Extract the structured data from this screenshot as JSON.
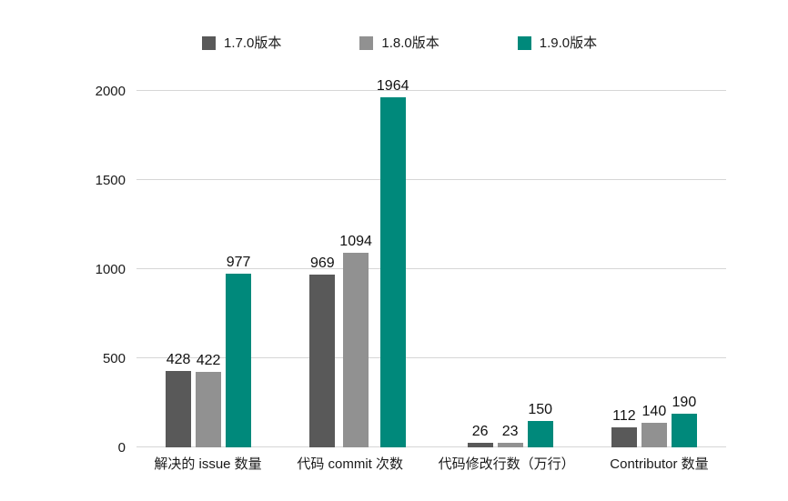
{
  "legend": {
    "items": [
      {
        "label": "1.7.0版本",
        "color": "#595959"
      },
      {
        "label": "1.8.0版本",
        "color": "#919191"
      },
      {
        "label": "1.9.0版本",
        "color": "#00897b"
      }
    ]
  },
  "chart_data": {
    "type": "bar",
    "title": "",
    "xlabel": "",
    "ylabel": "",
    "categories": [
      "解决的 issue 数量",
      "代码 commit 次数",
      "代码修改行数（万行）",
      "Contributor 数量"
    ],
    "series": [
      {
        "name": "1.7.0版本",
        "color": "#595959",
        "values": [
          428,
          969,
          26,
          112
        ]
      },
      {
        "name": "1.8.0版本",
        "color": "#919191",
        "values": [
          422,
          1094,
          23,
          140
        ]
      },
      {
        "name": "1.9.0版本",
        "color": "#00897b",
        "values": [
          977,
          1964,
          150,
          190
        ]
      }
    ],
    "y_ticks": [
      0,
      500,
      1000,
      1500,
      2000
    ],
    "ylim": [
      0,
      2000
    ],
    "grid": true,
    "legend_position": "top"
  }
}
